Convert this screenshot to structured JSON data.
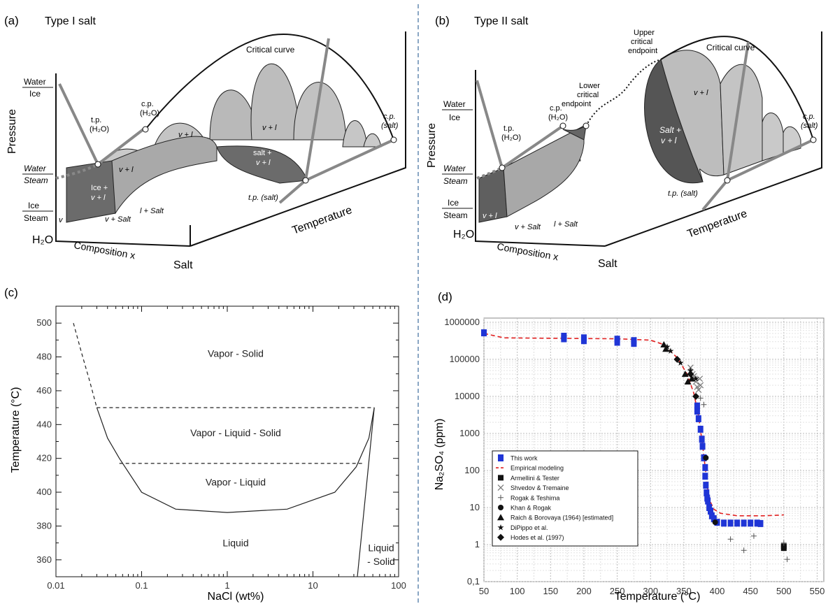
{
  "panels": {
    "a": {
      "letter": "(a)",
      "title": "Type I salt"
    },
    "b": {
      "letter": "(b)",
      "title": "Type II salt"
    },
    "c": {
      "letter": "(c)"
    },
    "d": {
      "letter": "(d)"
    }
  },
  "diagram_a": {
    "labels": {
      "critical_curve": "Critical curve",
      "cp_h2o": "c.p.",
      "cp_h2o_sub": "(H₂O)",
      "tp_h2o": "t.p.",
      "tp_h2o_sub": "(H₂O)",
      "cp_salt": "c.p.",
      "cp_salt_sub": "(salt)",
      "tp_salt": "t.p. (salt)",
      "water_ice_top": "Water",
      "water_ice_bot": "Ice",
      "water_steam_top": "Water",
      "water_steam_bot": "Steam",
      "ice_steam_top": "Ice",
      "ice_steam_bot": "Steam",
      "pressure": "Pressure",
      "temperature": "Temperature",
      "composition": "Composition x",
      "h2o": "H₂O",
      "salt": "Salt",
      "vl1": "v + l",
      "vl2": "v + l",
      "vl3": "v + l",
      "ice_vl": "Ice +",
      "ice_vl2": "v + l",
      "salt_vl": "salt +",
      "salt_vl2": "v + l",
      "l_salt": "l + Salt",
      "v_salt": "v + Salt",
      "v": "v"
    }
  },
  "diagram_b": {
    "labels": {
      "critical_curve": "Critical curve",
      "upper_cep1": "Upper",
      "upper_cep2": "critical",
      "upper_cep3": "endpoint",
      "lower_cep1": "Lower",
      "lower_cep2": "critical",
      "lower_cep3": "endpoint",
      "cp_h2o": "c.p.",
      "cp_h2o_sub": "(H₂O)",
      "tp_h2o": "t.p.",
      "tp_h2o_sub": "(H₂O)",
      "cp_salt": "c.p.",
      "cp_salt_sub": "(salt)",
      "tp_salt": "t.p. (salt)",
      "water_ice_top": "Water",
      "water_ice_bot": "Ice",
      "water_steam_top": "Water",
      "water_steam_bot": "Steam",
      "ice_steam_top": "Ice",
      "ice_steam_bot": "Steam",
      "pressure": "Pressure",
      "temperature": "Temperature",
      "composition": "Composition x",
      "h2o": "H₂O",
      "salt": "Salt",
      "vl": "v + l",
      "vl_small": "v + l",
      "salt_vl1": "Salt +",
      "salt_vl2": "v + l",
      "l_salt": "l + Salt",
      "v_salt": "v + Salt"
    }
  },
  "chart_data": [
    {
      "type": "line",
      "panel": "c",
      "xlabel": "NaCl (wt%)",
      "ylabel": "Temperature (°C)",
      "xscale": "log",
      "xlim": [
        0.01,
        100
      ],
      "ylim": [
        350,
        510
      ],
      "xticks": [
        0.01,
        0.1,
        1,
        10,
        100
      ],
      "xtick_labels": [
        "0.01",
        "0.1",
        "1",
        "10",
        "100"
      ],
      "yticks": [
        360,
        380,
        400,
        420,
        440,
        460,
        480,
        500
      ],
      "ytick_labels": [
        "360",
        "380",
        "400",
        "420",
        "440",
        "460",
        "480",
        "500"
      ],
      "series": [
        {
          "style": "solid",
          "points": [
            [
              0.03,
              450
            ],
            [
              0.04,
              432
            ],
            [
              0.055,
              420
            ],
            [
              0.1,
              400
            ],
            [
              0.25,
              390
            ],
            [
              1,
              388
            ],
            [
              5,
              390
            ],
            [
              18,
              400
            ],
            [
              32,
              415
            ],
            [
              45,
              432
            ],
            [
              52,
              450
            ]
          ]
        },
        {
          "style": "dashed",
          "points": [
            [
              0.016,
              500
            ],
            [
              0.02,
              482
            ],
            [
              0.025,
              465
            ],
            [
              0.03,
              450
            ]
          ]
        },
        {
          "style": "solid",
          "points": [
            [
              33,
              350
            ],
            [
              52,
              450
            ]
          ]
        },
        {
          "style": "dashed",
          "points": [
            [
              0.03,
              450
            ],
            [
              52,
              450
            ]
          ]
        },
        {
          "style": "dashed",
          "points": [
            [
              0.055,
              417
            ],
            [
              38,
              417
            ]
          ]
        }
      ],
      "annotations": [
        {
          "text": "Vapor - Solid",
          "x": 1,
          "y": 480
        },
        {
          "text": "Vapor - Liquid - Solid",
          "x": 1,
          "y": 433
        },
        {
          "text": "Vapor - Liquid",
          "x": 1,
          "y": 404
        },
        {
          "text": "Liquid",
          "x": 1,
          "y": 368
        },
        {
          "text": "Liquid",
          "x": 100,
          "y": 365
        },
        {
          "text": "- Solid",
          "x": 100,
          "y": 357
        }
      ]
    },
    {
      "type": "scatter",
      "panel": "d",
      "xlabel": "Temperature (°C)",
      "ylabel": "Na₂SO₄ (ppm)",
      "yscale": "log",
      "xlim": [
        50,
        560
      ],
      "ylim": [
        0.1,
        1300000
      ],
      "xticks": [
        50,
        100,
        150,
        200,
        250,
        300,
        350,
        400,
        450,
        500,
        550
      ],
      "xtick_labels": [
        "50",
        "100",
        "150",
        "200",
        "250",
        "300",
        "350",
        "400",
        "450",
        "500",
        "550"
      ],
      "yticks": [
        0.1,
        1,
        10,
        100,
        1000,
        10000,
        100000,
        1000000
      ],
      "ytick_labels": [
        "0,1",
        "1",
        "10",
        "100",
        "1000",
        "10000",
        "100000",
        "1000000"
      ],
      "legend_position": "bottom-left",
      "series": [
        {
          "name": "This work",
          "marker": "square",
          "color": "#1f35d6",
          "points": [
            [
              50,
              520000
            ],
            [
              170,
              420000
            ],
            [
              170,
              360000
            ],
            [
              200,
              380000
            ],
            [
              200,
              320000
            ],
            [
              250,
              350000
            ],
            [
              250,
              290000
            ],
            [
              275,
              320000
            ],
            [
              275,
              270000
            ],
            [
              370,
              5500
            ],
            [
              370,
              4000
            ],
            [
              372,
              2500
            ],
            [
              375,
              1300
            ],
            [
              377,
              700
            ],
            [
              378,
              450
            ],
            [
              380,
              220
            ],
            [
              382,
              120
            ],
            [
              382,
              70
            ],
            [
              383,
              40
            ],
            [
              384,
              25
            ],
            [
              385,
              18
            ],
            [
              386,
              15
            ],
            [
              388,
              10
            ],
            [
              390,
              8
            ],
            [
              392,
              6
            ],
            [
              395,
              5
            ],
            [
              400,
              4
            ],
            [
              410,
              3.8
            ],
            [
              420,
              3.8
            ],
            [
              430,
              3.8
            ],
            [
              440,
              3.8
            ],
            [
              450,
              3.8
            ],
            [
              460,
              3.8
            ],
            [
              465,
              3.7
            ]
          ]
        },
        {
          "name": "Empirical modeling",
          "marker": "line",
          "color": "#e02020",
          "points": [
            [
              50,
              500000
            ],
            [
              80,
              380000
            ],
            [
              150,
              370000
            ],
            [
              250,
              360000
            ],
            [
              300,
              330000
            ],
            [
              320,
              250000
            ],
            [
              340,
              110000
            ],
            [
              355,
              40000
            ],
            [
              365,
              12000
            ],
            [
              372,
              3000
            ],
            [
              378,
              500
            ],
            [
              382,
              120
            ],
            [
              386,
              30
            ],
            [
              390,
              14
            ],
            [
              395,
              9
            ],
            [
              405,
              7
            ],
            [
              430,
              6
            ],
            [
              470,
              6
            ],
            [
              500,
              6.3
            ]
          ]
        },
        {
          "name": "Armellini & Tester",
          "marker": "square-black",
          "color": "#111111",
          "points": [
            [
              500,
              0.9
            ],
            [
              500,
              0.8
            ]
          ]
        },
        {
          "name": "Shvedov & Tremaine",
          "marker": "x",
          "color": "#777777",
          "points": [
            [
              360,
              60000
            ],
            [
              365,
              35000
            ],
            [
              368,
              25000
            ],
            [
              370,
              18000
            ],
            [
              372,
              15000
            ],
            [
              374,
              30000
            ],
            [
              375,
              20000
            ],
            [
              363,
              40000
            ]
          ]
        },
        {
          "name": "Rogak & Teshima",
          "marker": "plus",
          "color": "#555555",
          "points": [
            [
              420,
              1.4
            ],
            [
              440,
              0.7
            ],
            [
              455,
              1.7
            ],
            [
              500,
              1.1
            ],
            [
              505,
              0.4
            ],
            [
              375,
              9000
            ],
            [
              380,
              6000
            ]
          ]
        },
        {
          "name": "Khan & Rogak",
          "marker": "circle",
          "color": "#111111",
          "points": [
            [
              383,
              220
            ],
            [
              397,
              4
            ]
          ]
        },
        {
          "name": "Raich & Borovaya (1964) [estimated]",
          "marker": "triangle",
          "color": "#111111",
          "points": [
            [
              320,
              250000
            ],
            [
              323,
              190000
            ],
            [
              352,
              40000
            ],
            [
              356,
              25000
            ],
            [
              362,
              30000
            ]
          ]
        },
        {
          "name": "DiPippo et al.",
          "marker": "star",
          "color": "#111111",
          "points": [
            [
              325,
              220000
            ],
            [
              330,
              170000
            ],
            [
              345,
              80000
            ],
            [
              360,
              50000
            ],
            [
              368,
              30000
            ]
          ]
        },
        {
          "name": "Hodes et al. (1997)",
          "marker": "diamond",
          "color": "#111111",
          "points": [
            [
              340,
              100000
            ],
            [
              360,
              40000
            ],
            [
              368,
              10000
            ]
          ]
        }
      ]
    }
  ]
}
